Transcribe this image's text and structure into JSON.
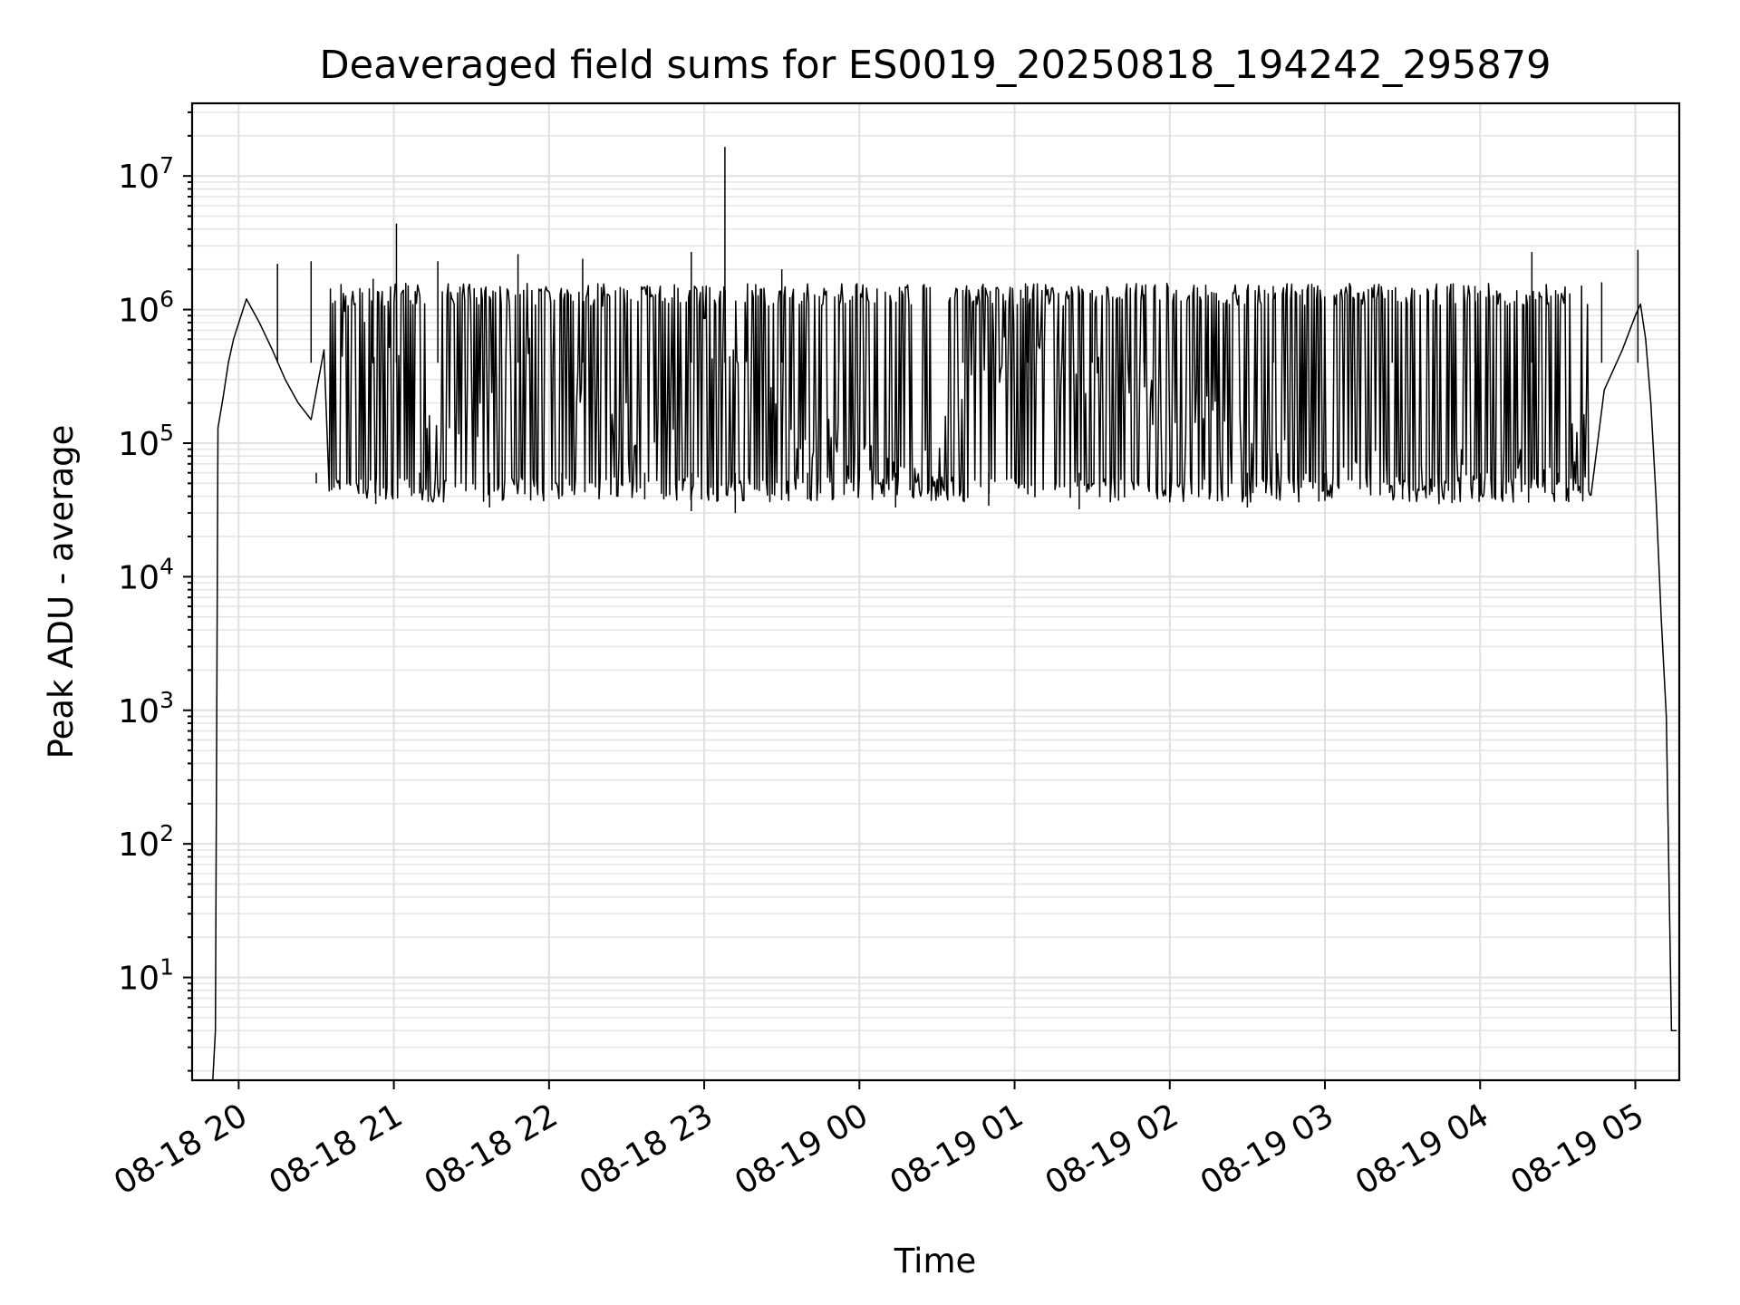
{
  "chart_data": {
    "type": "line",
    "title": "Deaveraged field sums for ES0019_20250818_194242_295879",
    "xlabel": "Time",
    "ylabel": "Peak ADU - average",
    "yscale": "log",
    "ylim": [
      1.7,
      35000000.0
    ],
    "xlim": [
      "2025-08-18 19:42",
      "2025-08-19 05:17"
    ],
    "grid": "both (major and minor)",
    "legend": "none",
    "line_color": "#000000",
    "x_tick_labels": [
      "08-18 20",
      "08-18 21",
      "08-18 22",
      "08-18 23",
      "08-19 00",
      "08-19 01",
      "08-19 02",
      "08-19 03",
      "08-19 04",
      "08-19 05"
    ],
    "y_tick_labels": [
      {
        "value": 10,
        "base": "10",
        "exp": "1"
      },
      {
        "value": 100,
        "base": "10",
        "exp": "2"
      },
      {
        "value": 1000,
        "base": "10",
        "exp": "3"
      },
      {
        "value": 10000,
        "base": "10",
        "exp": "4"
      },
      {
        "value": 100000,
        "base": "10",
        "exp": "5"
      },
      {
        "value": 1000000,
        "base": "10",
        "exp": "6"
      },
      {
        "value": 10000000,
        "base": "10",
        "exp": "7"
      }
    ],
    "series": [
      {
        "x": [
          "2025-08-18 19:50",
          "2025-08-18 19:51",
          "2025-08-18 19:52",
          "2025-08-18 19:54",
          "2025-08-18 19:56",
          "2025-08-18 19:58",
          "2025-08-18 20:03",
          "2025-08-18 20:08",
          "2025-08-18 20:13",
          "2025-08-18 20:18",
          "2025-08-18 20:23",
          "2025-08-18 20:28",
          "2025-08-18 20:33",
          "2025-08-18 20:43",
          "2025-08-18 20:53",
          "2025-08-18 21:03",
          "2025-08-18 21:13",
          "2025-08-18 21:28",
          "2025-08-18 21:43",
          "2025-08-18 21:53",
          "2025-08-18 22:03",
          "2025-08-18 22:18",
          "2025-08-18 22:33",
          "2025-08-18 22:48",
          "2025-08-18 22:58",
          "2025-08-18 23:08",
          "2025-08-18 23:23",
          "2025-08-18 23:38",
          "2025-08-18 23:53",
          "2025-08-19 00:08",
          "2025-08-19 00:23",
          "2025-08-19 00:43",
          "2025-08-19 00:58",
          "2025-08-19 01:13",
          "2025-08-19 01:28",
          "2025-08-19 01:43",
          "2025-08-19 01:58",
          "2025-08-19 02:13",
          "2025-08-19 02:28",
          "2025-08-19 02:43",
          "2025-08-19 02:58",
          "2025-08-19 03:13",
          "2025-08-19 03:28",
          "2025-08-19 03:43",
          "2025-08-19 03:58",
          "2025-08-19 04:13",
          "2025-08-19 04:28",
          "2025-08-19 04:38",
          "2025-08-19 04:48",
          "2025-08-19 04:55",
          "2025-08-19 05:00",
          "2025-08-19 05:02",
          "2025-08-19 05:04",
          "2025-08-19 05:06",
          "2025-08-19 05:08",
          "2025-08-19 05:10",
          "2025-08-19 05:12",
          "2025-08-19 05:14",
          "2025-08-19 05:16"
        ],
        "y": [
          1.7,
          4,
          130000,
          220000,
          400000,
          600000,
          1200000,
          800000,
          500000,
          300000,
          200000,
          150000,
          500000,
          800000,
          600000,
          300000,
          150000,
          120000,
          400000,
          800000,
          500000,
          150000,
          120000,
          200000,
          600000,
          500000,
          200000,
          120000,
          90000,
          60000,
          50000,
          300000,
          500000,
          450000,
          350000,
          250000,
          200000,
          150000,
          100000,
          70000,
          60000,
          60000,
          50000,
          55000,
          60000,
          65000,
          80000,
          120000,
          250000,
          500000,
          900000,
          1100000,
          600000,
          200000,
          40000,
          5000,
          900,
          4,
          4
        ]
      },
      {
        "x": [
          "2025-08-18 20:15",
          "2025-08-18 20:28",
          "2025-08-18 20:52",
          "2025-08-18 21:01",
          "2025-08-18 21:17",
          "2025-08-18 21:48",
          "2025-08-18 22:13",
          "2025-08-18 22:55",
          "2025-08-18 23:08",
          "2025-08-18 23:30",
          "2025-08-18 23:52",
          "2025-08-19 00:40",
          "2025-08-19 01:05",
          "2025-08-19 01:30",
          "2025-08-19 01:50",
          "2025-08-19 02:40",
          "2025-08-19 03:26",
          "2025-08-19 03:58",
          "2025-08-19 04:20",
          "2025-08-19 04:47",
          "2025-08-19 05:01"
        ],
        "y": [
          2200000,
          2300000,
          1700000,
          4400000,
          2300000,
          2600000,
          2400000,
          2700000,
          16500000,
          2000000,
          1300000,
          1400000,
          1500000,
          1400000,
          1300000,
          1500000,
          1400000,
          1500000,
          2700000,
          1600000,
          2800000
        ]
      },
      {
        "x": [
          "2025-08-18 20:30",
          "2025-08-18 20:53",
          "2025-08-18 21:10",
          "2025-08-18 21:37",
          "2025-08-18 22:05",
          "2025-08-18 22:37",
          "2025-08-18 22:55",
          "2025-08-18 23:12",
          "2025-08-18 23:40",
          "2025-08-19 00:14",
          "2025-08-19 00:50",
          "2025-08-19 01:25",
          "2025-08-19 02:00",
          "2025-08-19 02:30",
          "2025-08-19 03:00",
          "2025-08-19 03:30",
          "2025-08-19 04:00",
          "2025-08-19 04:30"
        ],
        "y": [
          50000,
          35000,
          42000,
          33000,
          40000,
          38000,
          31000,
          30000,
          38000,
          33000,
          34000,
          32000,
          36000,
          33000,
          37000,
          38000,
          40000,
          50000
        ]
      }
    ]
  }
}
